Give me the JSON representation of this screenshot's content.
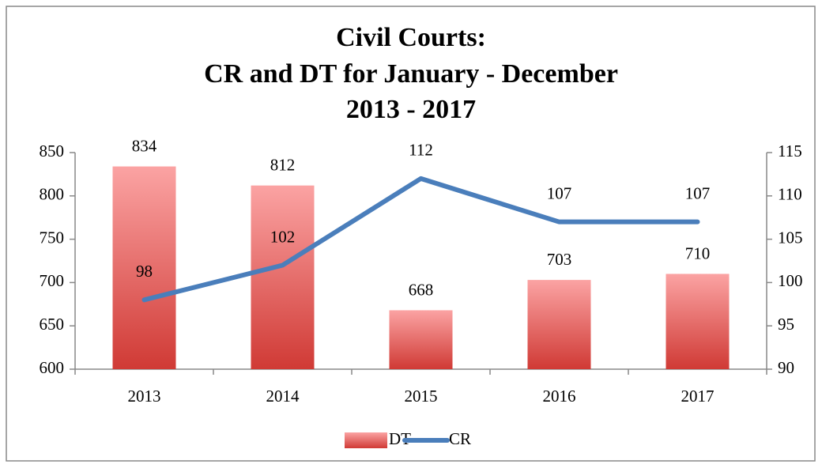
{
  "chart_data": {
    "type": "bar_line",
    "title_lines": [
      "Civil Courts:",
      "CR and DT for January - December",
      "2013 - 2017"
    ],
    "categories": [
      "2013",
      "2014",
      "2015",
      "2016",
      "2017"
    ],
    "series": [
      {
        "name": "DT",
        "type": "bar",
        "color": "#d33b36",
        "values": [
          834,
          812,
          668,
          703,
          710
        ]
      },
      {
        "name": "CR",
        "type": "line",
        "axis": "y2",
        "color": "#4a7ebb",
        "values": [
          98,
          102,
          112,
          107,
          107
        ]
      }
    ],
    "ylim": [
      600,
      850
    ],
    "yticks": [
      600,
      650,
      700,
      750,
      800,
      850
    ],
    "y2lim": [
      90,
      115
    ],
    "y2ticks": [
      90,
      95,
      100,
      105,
      110,
      115
    ],
    "legend": "bottom",
    "grid": false
  }
}
